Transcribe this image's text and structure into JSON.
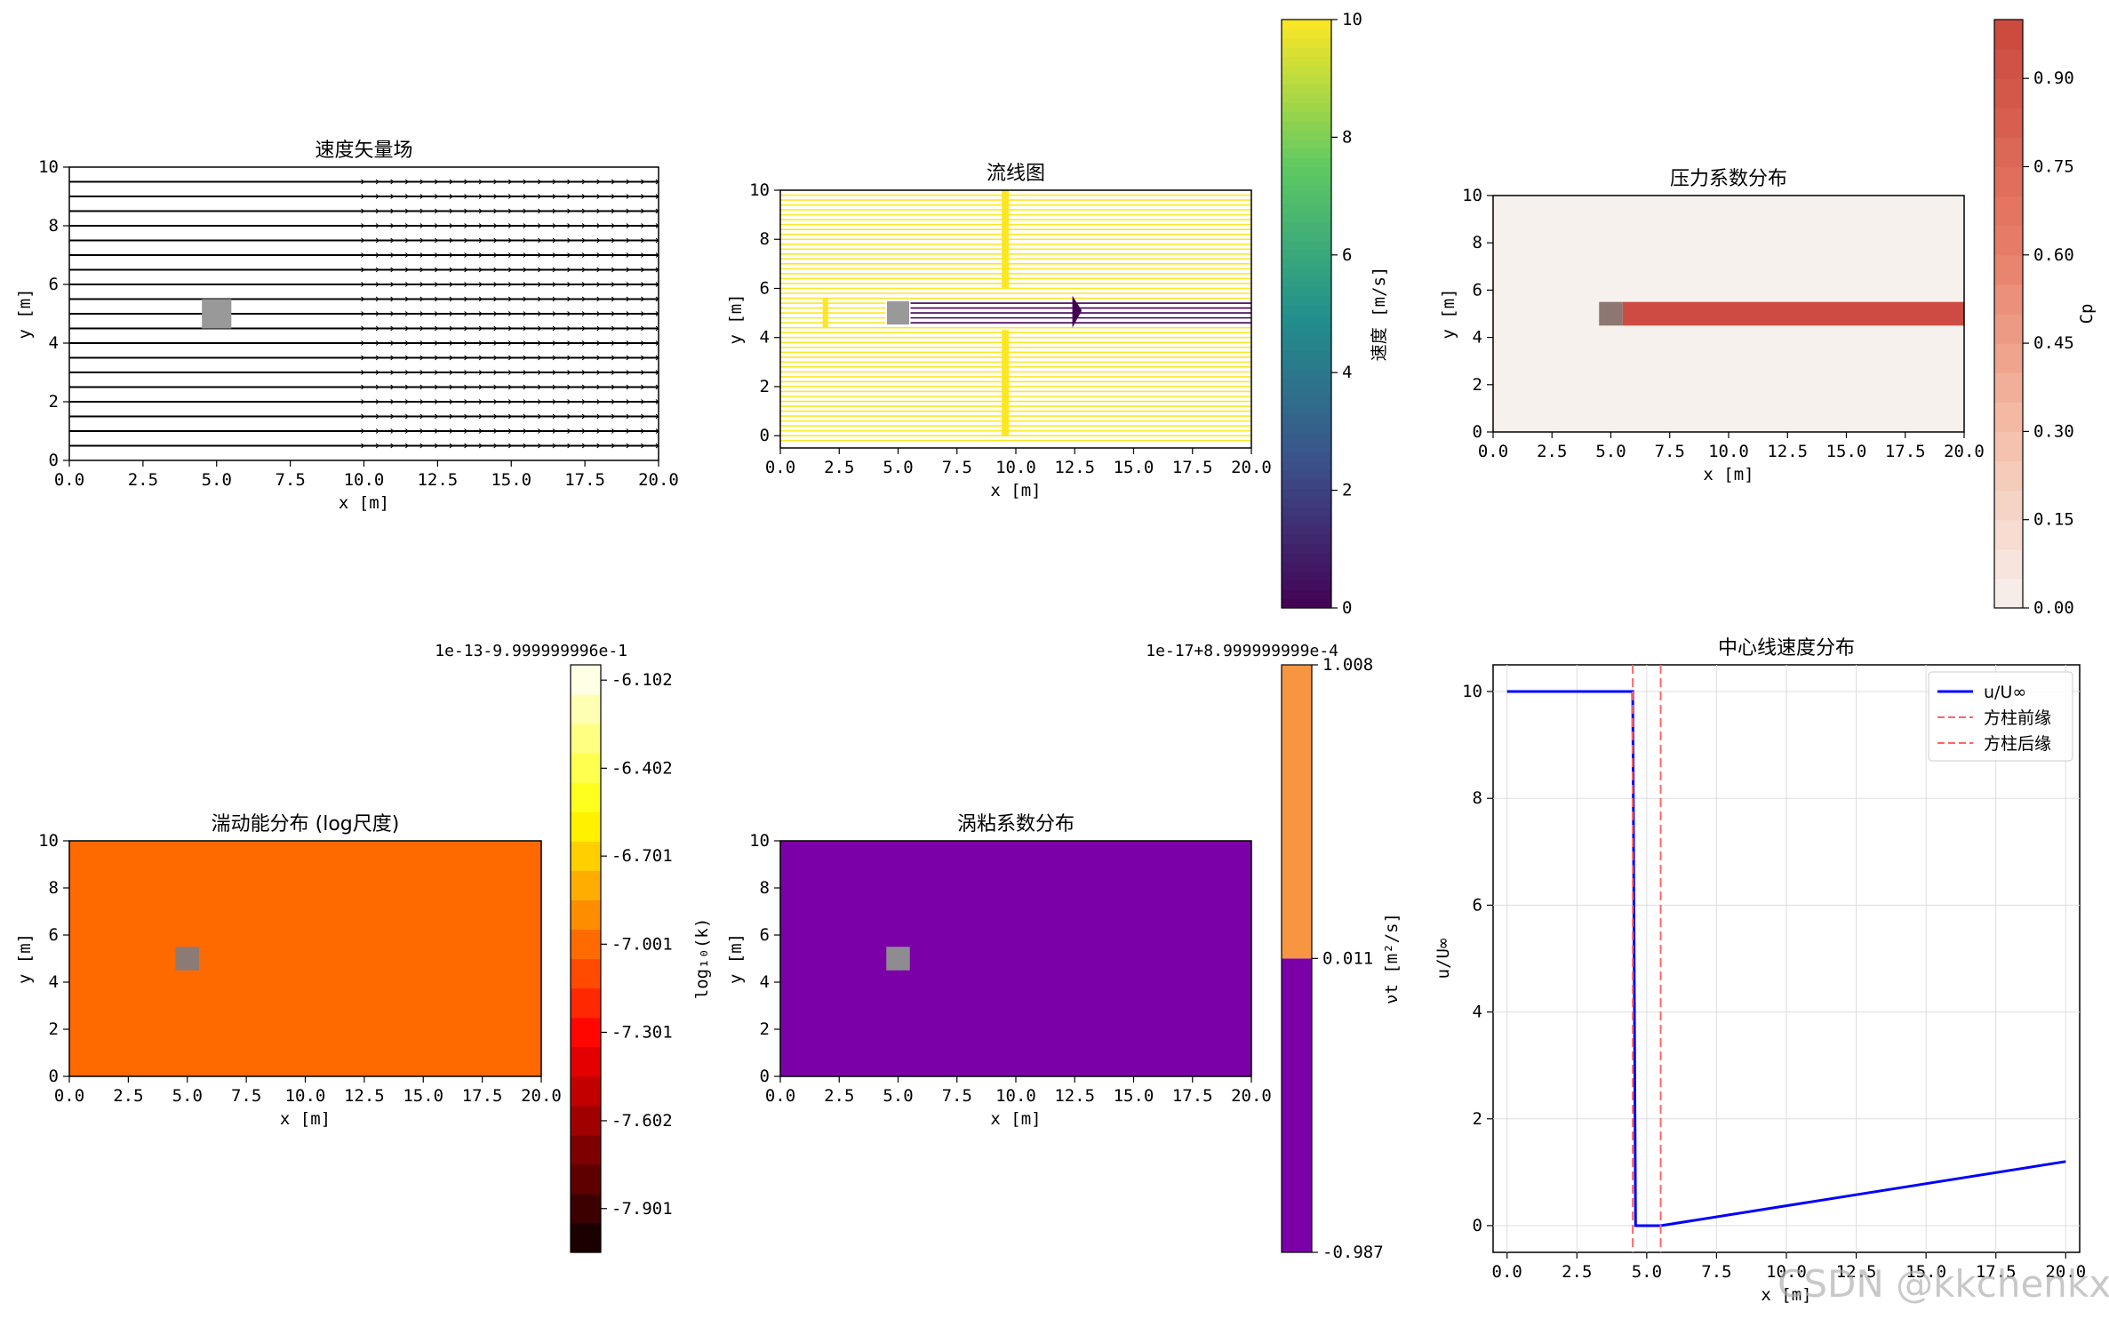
{
  "figure": {
    "watermark": "CSDN @kkchenkx",
    "colors": {
      "obstacle": "#999999",
      "axis": "#000000"
    }
  },
  "chart_data": [
    {
      "id": "velocity",
      "type": "quiver",
      "title": "速度矢量场",
      "xlabel": "x [m]",
      "ylabel": "y [m]",
      "xlim": [
        0,
        20
      ],
      "ylim": [
        0,
        10
      ],
      "xticks": [
        "0.0",
        "2.5",
        "5.0",
        "7.5",
        "10.0",
        "12.5",
        "15.0",
        "17.5",
        "20.0"
      ],
      "yticks": [
        "0",
        "2",
        "4",
        "6",
        "8",
        "10"
      ],
      "obstacle": {
        "x": [
          4.5,
          5.5
        ],
        "y": [
          4.5,
          5.5
        ]
      },
      "rows_y": [
        0.5,
        1.0,
        1.5,
        2.0,
        2.5,
        3.0,
        3.5,
        4.0,
        4.5,
        5.0,
        5.5,
        6.0,
        6.5,
        7.0,
        7.5,
        8.0,
        8.5,
        9.0,
        9.5
      ],
      "freestream_u": 10
    },
    {
      "id": "streamlines",
      "type": "streamline",
      "title": "流线图",
      "xlabel": "x [m]",
      "ylabel": "y [m]",
      "xlim": [
        0,
        20
      ],
      "ylim": [
        -0.5,
        10
      ],
      "xticks": [
        "0.0",
        "2.5",
        "5.0",
        "7.5",
        "10.0",
        "12.5",
        "15.0",
        "17.5",
        "20.0"
      ],
      "yticks": [
        "0",
        "2",
        "4",
        "6",
        "8",
        "10"
      ],
      "obstacle": {
        "x": [
          4.5,
          5.5
        ],
        "y": [
          4.5,
          5.5
        ]
      },
      "wake": {
        "x": [
          5.5,
          20
        ],
        "y": [
          4.5,
          5.5
        ],
        "speed": 0
      },
      "freestream_speed": 10,
      "colorbar": {
        "label": "速度 [m/s]",
        "range": [
          0,
          10
        ],
        "ticks": [
          "0",
          "2",
          "4",
          "6",
          "8",
          "10"
        ],
        "cmap": "viridis"
      }
    },
    {
      "id": "pressure",
      "type": "heatmap",
      "title": "压力系数分布",
      "xlabel": "x [m]",
      "ylabel": "y [m]",
      "xlim": [
        0,
        20
      ],
      "ylim": [
        0,
        10
      ],
      "xticks": [
        "0.0",
        "2.5",
        "5.0",
        "7.5",
        "10.0",
        "12.5",
        "15.0",
        "17.5",
        "20.0"
      ],
      "yticks": [
        "0",
        "2",
        "4",
        "6",
        "8",
        "10"
      ],
      "background_cp": 0.0,
      "band": {
        "x": [
          5.5,
          20
        ],
        "y": [
          4.5,
          5.5
        ],
        "cp": 1.0
      },
      "obstacle": {
        "x": [
          4.5,
          5.5
        ],
        "y": [
          4.5,
          5.5
        ]
      },
      "colorbar": {
        "label": "Cp",
        "range": [
          0,
          1
        ],
        "ticks": [
          "0.00",
          "0.15",
          "0.30",
          "0.45",
          "0.60",
          "0.75",
          "0.90"
        ],
        "tick_values": [
          0,
          0.15,
          0.3,
          0.45,
          0.6,
          0.75,
          0.9
        ],
        "levels": 20,
        "cmap": "Reds"
      }
    },
    {
      "id": "tke",
      "type": "heatmap",
      "title": "湍动能分布 (log尺度)",
      "xlabel": "x [m]",
      "ylabel": "y [m]",
      "xlim": [
        0,
        20
      ],
      "ylim": [
        0,
        10
      ],
      "xticks": [
        "0.0",
        "2.5",
        "5.0",
        "7.5",
        "10.0",
        "12.5",
        "15.0",
        "17.5",
        "20.0"
      ],
      "yticks": [
        "0",
        "2",
        "4",
        "6",
        "8",
        "10"
      ],
      "fill_color": "#ff6a00",
      "obstacle": {
        "x": [
          4.5,
          5.5
        ],
        "y": [
          4.5,
          5.5
        ]
      },
      "colorbar": {
        "label": "log₁₀(k)",
        "offset": "1e-13-9.999999996e-1",
        "ticks": [
          "-6.102",
          "-6.402",
          "-6.701",
          "-7.001",
          "-7.301",
          "-7.602",
          "-7.901"
        ],
        "tick_values": [
          -6.102,
          -6.402,
          -6.701,
          -7.001,
          -7.301,
          -7.602,
          -7.901
        ],
        "range": [
          -8.05,
          -6.05
        ],
        "levels": 20,
        "cmap": "hot"
      }
    },
    {
      "id": "nut",
      "type": "heatmap",
      "title": "涡粘系数分布",
      "xlabel": "x [m]",
      "ylabel": "y [m]",
      "xlim": [
        0,
        20
      ],
      "ylim": [
        0,
        10
      ],
      "xticks": [
        "0.0",
        "2.5",
        "5.0",
        "7.5",
        "10.0",
        "12.5",
        "15.0",
        "17.5",
        "20.0"
      ],
      "yticks": [
        "0",
        "2",
        "4",
        "6",
        "8",
        "10"
      ],
      "fill_color": "#7b00a8",
      "obstacle": {
        "x": [
          4.5,
          5.5
        ],
        "y": [
          4.5,
          5.5
        ]
      },
      "colorbar": {
        "label": "νt [m²/s]",
        "offset": "1e-17+8.999999999e-4",
        "ticks": [
          "1.008",
          "0.011",
          "-0.987"
        ],
        "bounds": [
          -0.987,
          0.011,
          1.008
        ],
        "colors": [
          "#7b00a8",
          "#f89540"
        ]
      }
    },
    {
      "id": "centerline",
      "type": "line",
      "title": "中心线速度分布",
      "xlabel": "x [m]",
      "ylabel": "u/U∞",
      "xlim": [
        -0.5,
        20.5
      ],
      "ylim": [
        -0.5,
        10.5
      ],
      "xticks": [
        "0.0",
        "2.5",
        "5.0",
        "7.5",
        "10.0",
        "12.5",
        "15.0",
        "17.5",
        "20.0"
      ],
      "yticks": [
        "0",
        "2",
        "4",
        "6",
        "8",
        "10"
      ],
      "grid": true,
      "legend_position": "top-right",
      "series": [
        {
          "name": "u/U∞",
          "color": "#0000ff",
          "x": [
            0,
            4.5,
            4.6,
            5.5,
            20
          ],
          "y": [
            10,
            10,
            0,
            0,
            1.2
          ]
        }
      ],
      "vlines": [
        {
          "name": "方柱前缘",
          "x": 4.5,
          "color": "#ff6666"
        },
        {
          "name": "方柱后缘",
          "x": 5.5,
          "color": "#ff6666"
        }
      ]
    }
  ]
}
